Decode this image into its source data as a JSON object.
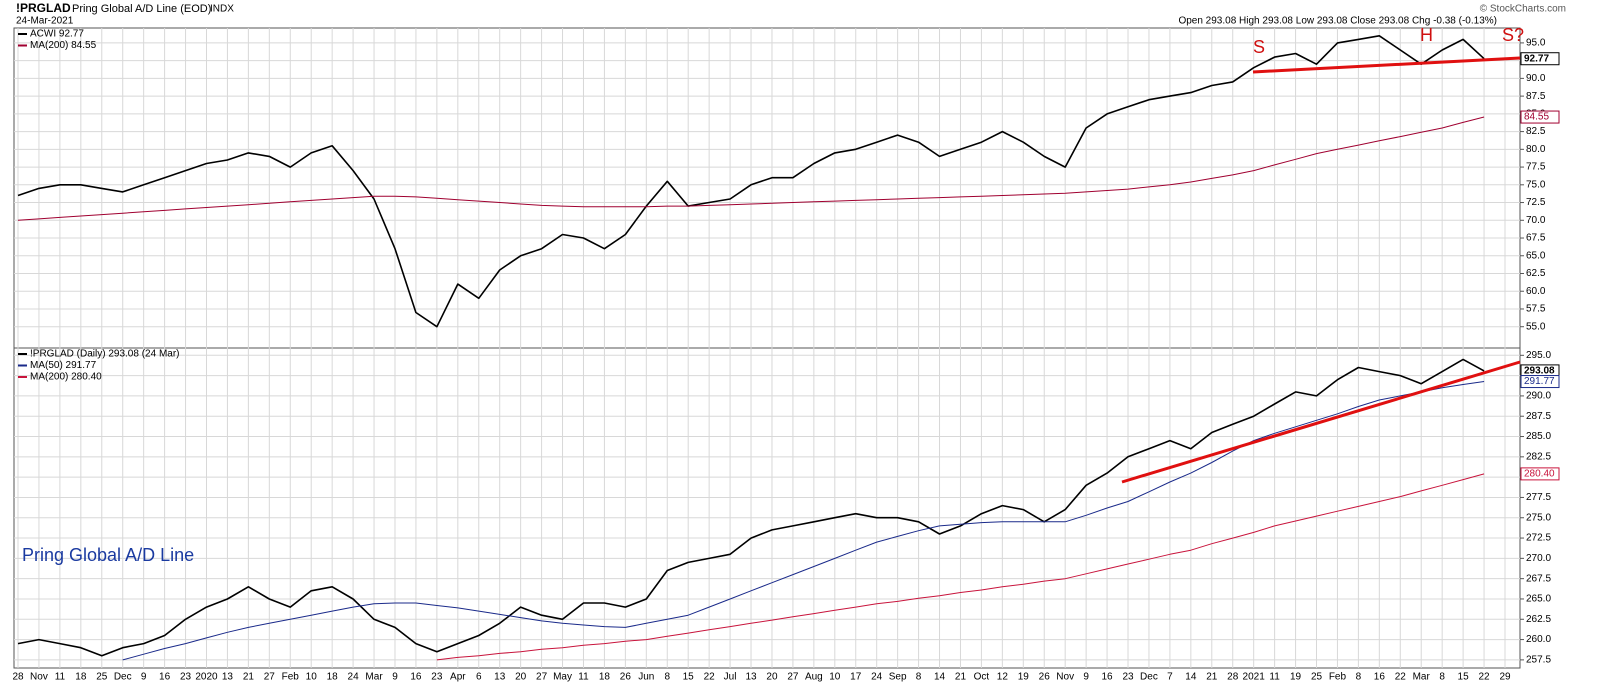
{
  "header": {
    "symbol": "!PRGLAD",
    "title": "Pring Global A/D Line (EOD)",
    "exchange": "INDX",
    "date": "24-Mar-2021",
    "quote": "Open 293.08 High 293.08 Low 293.08 Close 293.08 Chg -0.38 (-0.13%)",
    "credit": "© StockCharts.com"
  },
  "x_axis": {
    "categories": [
      "28",
      "Nov",
      "11",
      "18",
      "25",
      "Dec",
      "9",
      "16",
      "23",
      "2020",
      "13",
      "21",
      "27",
      "Feb",
      "10",
      "18",
      "24",
      "Mar",
      "9",
      "16",
      "23",
      "Apr",
      "6",
      "13",
      "20",
      "27",
      "May",
      "11",
      "18",
      "26",
      "Jun",
      "8",
      "15",
      "22",
      "Jul",
      "13",
      "20",
      "27",
      "Aug",
      "10",
      "17",
      "24",
      "Sep",
      "8",
      "14",
      "21",
      "Oct",
      "12",
      "19",
      "26",
      "Nov",
      "9",
      "16",
      "23",
      "Dec",
      "7",
      "14",
      "21",
      "28",
      "2021",
      "11",
      "19",
      "25",
      "Feb",
      "8",
      "16",
      "22",
      "Mar",
      "8",
      "15",
      "22",
      "29"
    ]
  },
  "chart_data": [
    {
      "type": "line",
      "grid": true,
      "legend": "upper left",
      "ylim": [
        52,
        97.1
      ],
      "yticks": [
        {
          "value": 55,
          "label": "55.0"
        },
        57.5,
        {
          "value": 60,
          "label": "60.0"
        },
        62.5,
        {
          "value": 65,
          "label": "65.0"
        },
        67.5,
        {
          "value": 70,
          "label": "70.0"
        },
        72.5,
        {
          "value": 75,
          "label": "75.0"
        },
        77.5,
        {
          "value": 80,
          "label": "80.0"
        },
        82.5,
        {
          "value": 85,
          "label": "85.0"
        },
        87.5,
        {
          "value": 90,
          "label": "90.0"
        },
        92.5,
        {
          "value": 95,
          "label": "95.0"
        }
      ],
      "annotations": [
        "S",
        "H",
        "S?"
      ],
      "series": [
        {
          "name": "ACWI 92.77",
          "color": "#000000",
          "width": 1.6,
          "tag": "92.77",
          "values": [
            73.5,
            74.5,
            75,
            75,
            74.5,
            74,
            75,
            76,
            77,
            78,
            78.5,
            79.5,
            79,
            77.5,
            79.5,
            80.5,
            77,
            73,
            66,
            57,
            55,
            61,
            59,
            63,
            65,
            66,
            68,
            67.5,
            66,
            68,
            72,
            75.5,
            72,
            72.5,
            73,
            75,
            76,
            76,
            78,
            79.5,
            80,
            81,
            82,
            81,
            79,
            80,
            81,
            82.5,
            81,
            79,
            77.5,
            83,
            85,
            86,
            87,
            87.5,
            88,
            89,
            89.5,
            91.5,
            93,
            93.5,
            92,
            95,
            95.5,
            96,
            94,
            92,
            94,
            95.5,
            92.77,
            null
          ]
        },
        {
          "name": "MA(200) 84.55",
          "color": "#a00030",
          "width": 1,
          "tag": "84.55",
          "values": [
            70.0,
            70.2,
            70.4,
            70.6,
            70.8,
            71.0,
            71.2,
            71.4,
            71.6,
            71.8,
            72.0,
            72.2,
            72.4,
            72.6,
            72.8,
            73.0,
            73.2,
            73.4,
            73.4,
            73.3,
            73.1,
            72.9,
            72.7,
            72.5,
            72.3,
            72.1,
            72.0,
            71.9,
            71.9,
            71.9,
            71.9,
            72.0,
            72.0,
            72.1,
            72.2,
            72.3,
            72.4,
            72.5,
            72.6,
            72.7,
            72.8,
            72.9,
            73.0,
            73.1,
            73.2,
            73.3,
            73.4,
            73.5,
            73.6,
            73.7,
            73.8,
            74.0,
            74.2,
            74.4,
            74.7,
            75.0,
            75.4,
            75.9,
            76.4,
            77.0,
            77.8,
            78.6,
            79.4,
            80.0,
            80.6,
            81.2,
            81.8,
            82.4,
            83.0,
            83.8,
            84.55,
            null
          ]
        }
      ]
    },
    {
      "type": "line",
      "grid": true,
      "legend": "upper left",
      "ylim": [
        256.5,
        295.9
      ],
      "yticks": [
        257.5,
        {
          "value": 260,
          "label": "260.0"
        },
        262.5,
        {
          "value": 265,
          "label": "265.0"
        },
        267.5,
        {
          "value": 270,
          "label": "270.0"
        },
        272.5,
        {
          "value": 275,
          "label": "275.0"
        },
        277.5,
        {
          "value": 280,
          "label": "280.0"
        },
        282.5,
        {
          "value": 285,
          "label": "285.0"
        },
        287.5,
        {
          "value": 290,
          "label": "290.0"
        },
        292.5,
        {
          "value": 295,
          "label": "295.0"
        }
      ],
      "annotations": [
        "Pring Global A/D Line"
      ],
      "series": [
        {
          "name": "!PRGLAD (Daily) 293.08 (24 Mar)",
          "color": "#000000",
          "width": 1.6,
          "tag": "293.08",
          "values": [
            259.5,
            260,
            259.5,
            259,
            258,
            259,
            259.5,
            260.5,
            262.5,
            264,
            265,
            266.5,
            265,
            264,
            266,
            266.5,
            265,
            262.5,
            261.5,
            259.5,
            258.5,
            259.5,
            260.5,
            262,
            264,
            263,
            262.5,
            264.5,
            264.5,
            264,
            265,
            268.5,
            269.5,
            270,
            270.5,
            272.5,
            273.5,
            274,
            274.5,
            275,
            275.5,
            275,
            275,
            274.5,
            273,
            274,
            275.5,
            276.5,
            276,
            274.5,
            276,
            279,
            280.5,
            282.5,
            283.5,
            284.5,
            283.5,
            285.5,
            286.5,
            287.5,
            289,
            290.5,
            290,
            292,
            293.5,
            293,
            292.5,
            291.5,
            293,
            294.5,
            293.08,
            null
          ]
        },
        {
          "name": "MA(50) 291.77",
          "color": "#1a2a8a",
          "width": 1,
          "tag": "291.77",
          "values": [
            null,
            null,
            null,
            null,
            null,
            257.5,
            258.2,
            258.9,
            259.5,
            260.2,
            260.9,
            261.5,
            262.0,
            262.5,
            263.0,
            263.5,
            264.0,
            264.4,
            264.5,
            264.5,
            264.2,
            263.9,
            263.5,
            263.1,
            262.7,
            262.3,
            262.0,
            261.8,
            261.6,
            261.5,
            262.0,
            262.5,
            263.0,
            264.0,
            265.0,
            266.0,
            267.0,
            268.0,
            269.0,
            270.0,
            271.0,
            272.0,
            272.7,
            273.4,
            274.0,
            274.2,
            274.4,
            274.5,
            274.5,
            274.5,
            274.5,
            275.3,
            276.2,
            277.0,
            278.2,
            279.4,
            280.5,
            281.8,
            283.2,
            284.5,
            285.4,
            286.2,
            287.0,
            287.8,
            288.7,
            289.5,
            290.0,
            290.5,
            291.0,
            291.4,
            291.77,
            null
          ]
        },
        {
          "name": "MA(200) 280.40",
          "color": "#c8143c",
          "width": 1,
          "tag": "280.40",
          "values": [
            null,
            null,
            null,
            null,
            null,
            null,
            null,
            null,
            null,
            null,
            null,
            null,
            null,
            null,
            null,
            null,
            null,
            null,
            null,
            null,
            257.5,
            257.8,
            258.0,
            258.3,
            258.5,
            258.8,
            259.0,
            259.3,
            259.5,
            259.8,
            260.0,
            260.4,
            260.8,
            261.2,
            261.6,
            262.0,
            262.4,
            262.8,
            263.2,
            263.6,
            264.0,
            264.4,
            264.7,
            265.1,
            265.4,
            265.8,
            266.1,
            266.5,
            266.8,
            267.2,
            267.5,
            268.1,
            268.7,
            269.3,
            269.9,
            270.5,
            271.0,
            271.8,
            272.5,
            273.2,
            274.0,
            274.6,
            275.2,
            275.8,
            276.4,
            277.0,
            277.6,
            278.3,
            279.0,
            279.7,
            280.4,
            null
          ]
        }
      ]
    }
  ]
}
